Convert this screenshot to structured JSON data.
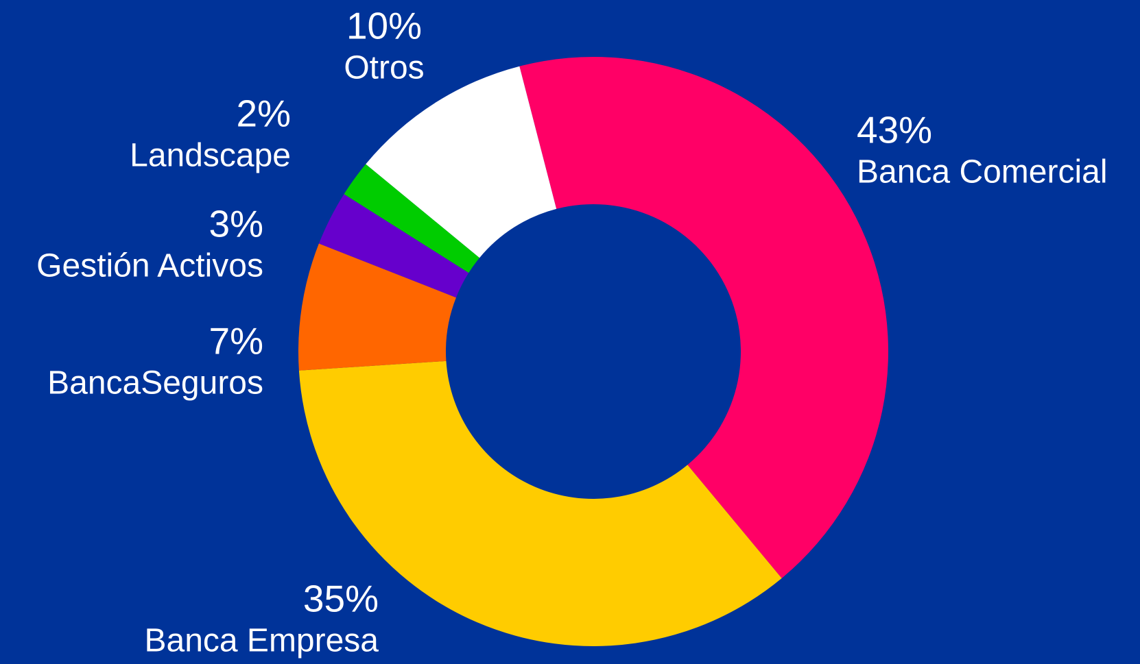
{
  "chart_data": {
    "type": "donut",
    "categories": [
      "Banca Comercial",
      "Banca Empresa",
      "BancaSeguros",
      "Gestión Activos",
      "Landscape",
      "Otros"
    ],
    "values": [
      43,
      35,
      7,
      3,
      2,
      10
    ],
    "value_labels": [
      "43%",
      "35%",
      "7%",
      "3%",
      "2%",
      "10%"
    ],
    "colors": [
      "#ff0066",
      "#ffcc00",
      "#ff6600",
      "#6600cc",
      "#00cc00",
      "#ffffff"
    ]
  }
}
